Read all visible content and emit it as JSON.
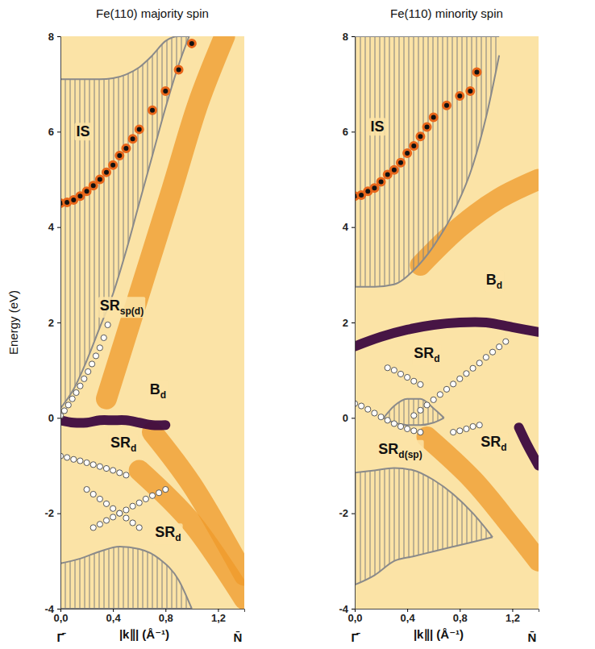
{
  "chart_data": [
    {
      "type": "scatter",
      "title": "Fe(110) majority spin",
      "x_label": "|k∥| (Å⁻¹)",
      "y_label": "Energy  (eV)",
      "x_end_labels": [
        "Γ̄",
        "N̄"
      ],
      "xlim": [
        0,
        1.4
      ],
      "ylim": [
        -4,
        8
      ],
      "xticks": [
        {
          "value": 0,
          "label": "0,0"
        },
        {
          "value": 0.4,
          "label": "0,4"
        },
        {
          "value": 0.8,
          "label": "0,8"
        },
        {
          "value": 1.2,
          "label": "1,2"
        }
      ],
      "yticks": [
        -4,
        -2,
        0,
        2,
        4,
        6,
        8
      ],
      "series": [
        {
          "type": "line",
          "line_style": "broad",
          "color": "#ef9a2a",
          "x": [
            0.35,
            0.6,
            0.85,
            1.05,
            1.25
          ],
          "values": [
            0.4,
            2.6,
            4.8,
            6.6,
            8.0
          ]
        },
        {
          "type": "line",
          "line_style": "broad",
          "color": "#ef9a2a",
          "x": [
            0.7,
            1.0,
            1.4
          ],
          "values": [
            -0.3,
            -1.4,
            -3.3
          ]
        },
        {
          "type": "line",
          "line_style": "broad",
          "color": "#ef9a2a",
          "x": [
            0.6,
            1.0,
            1.4
          ],
          "values": [
            -1.1,
            -2.2,
            -3.8
          ]
        },
        {
          "type": "line",
          "line_style": "band",
          "color": "#3d0a3f",
          "x": [
            0,
            0.1,
            0.2,
            0.3,
            0.4,
            0.5,
            0.6,
            0.7,
            0.8
          ],
          "values": [
            -0.05,
            -0.1,
            -0.1,
            -0.05,
            -0.05,
            -0.05,
            -0.1,
            -0.15,
            -0.15
          ]
        },
        {
          "type": "area",
          "color": "#8a8a8a",
          "x": [
            0,
            0.1,
            0.2,
            0.3,
            0.4,
            0.5,
            0.6,
            0.7,
            0.8,
            0.9,
            0.98
          ],
          "values": [
            7.1,
            7.1,
            7.1,
            7.1,
            7.12,
            7.2,
            7.35,
            7.6,
            7.9,
            8.0,
            8.0
          ],
          "lower": [
            0.2,
            0.6,
            1.2,
            1.9,
            2.6,
            3.5,
            4.5,
            5.5,
            6.5,
            7.4,
            8.0
          ]
        },
        {
          "type": "area",
          "color": "#8a8a8a",
          "x": [
            0,
            0.15,
            0.3,
            0.45,
            0.6,
            0.75,
            0.9,
            1.0
          ],
          "values": [
            -3.05,
            -2.95,
            -2.8,
            -2.7,
            -2.75,
            -2.95,
            -3.4,
            -4.0
          ],
          "lower": [
            -4,
            -4,
            -4,
            -4,
            -4,
            -4,
            -4,
            -4
          ]
        },
        {
          "type": "scatter",
          "marker": "ringed",
          "color": "#111111",
          "x": [
            0,
            0.05,
            0.1,
            0.15,
            0.2,
            0.25,
            0.3,
            0.35,
            0.4,
            0.45,
            0.5,
            0.55,
            0.6,
            0.7,
            0.8,
            0.9,
            1.0
          ],
          "values": [
            4.5,
            4.52,
            4.57,
            4.65,
            4.75,
            4.87,
            5.0,
            5.15,
            5.3,
            5.5,
            5.65,
            5.85,
            6.05,
            6.45,
            6.85,
            7.3,
            7.85
          ]
        },
        {
          "type": "scatter",
          "marker": "circle",
          "color": "#ffffff",
          "x": [
            0,
            0.03,
            0.06,
            0.09,
            0.12,
            0.15,
            0.18,
            0.21,
            0.24,
            0.27,
            0.3,
            0.33,
            0.36
          ],
          "values": [
            0.05,
            0.15,
            0.27,
            0.4,
            0.53,
            0.67,
            0.82,
            0.97,
            1.13,
            1.3,
            1.47,
            1.68,
            1.95
          ]
        },
        {
          "type": "scatter",
          "marker": "circle",
          "color": "#ffffff",
          "x": [
            0,
            0.05,
            0.1,
            0.15,
            0.2,
            0.25,
            0.3,
            0.35,
            0.4,
            0.45,
            0.5
          ],
          "values": [
            -0.8,
            -0.83,
            -0.87,
            -0.9,
            -0.94,
            -0.98,
            -1.02,
            -1.06,
            -1.1,
            -1.15,
            -1.2
          ]
        },
        {
          "type": "scatter",
          "marker": "circle",
          "color": "#ffffff",
          "x": [
            0.2,
            0.25,
            0.3,
            0.35,
            0.4,
            0.45,
            0.5,
            0.55,
            0.6
          ],
          "values": [
            -1.5,
            -1.6,
            -1.7,
            -1.8,
            -1.9,
            -2.0,
            -2.1,
            -2.2,
            -2.3
          ]
        },
        {
          "type": "scatter",
          "marker": "circle",
          "color": "#ffffff",
          "x": [
            0.25,
            0.3,
            0.35,
            0.4,
            0.45,
            0.5,
            0.55,
            0.6,
            0.65,
            0.7,
            0.75,
            0.8
          ],
          "values": [
            -2.3,
            -2.23,
            -2.15,
            -2.08,
            -2.0,
            -1.93,
            -1.85,
            -1.78,
            -1.7,
            -1.63,
            -1.57,
            -1.5
          ]
        }
      ],
      "annotations": [
        {
          "text": "IS",
          "x": 0.12,
          "y": 5.9
        },
        {
          "text": "SR",
          "sub": "sp(d)",
          "x": 0.3,
          "y": 2.25
        },
        {
          "text": "B",
          "sub": "d",
          "x": 0.68,
          "y": 0.5
        },
        {
          "text": "SR",
          "sub": "d",
          "x": 0.38,
          "y": -0.62
        },
        {
          "text": "SR",
          "sub": "d",
          "x": 0.72,
          "y": -2.5
        }
      ]
    },
    {
      "type": "scatter",
      "title": "Fe(110) minority spin",
      "x_label": "|k∥| (Å⁻¹)",
      "x_end_labels": [
        "Γ̄",
        "N̄"
      ],
      "xlim": [
        0,
        1.4
      ],
      "ylim": [
        -4,
        8
      ],
      "xticks": [
        {
          "value": 0,
          "label": "0,0"
        },
        {
          "value": 0.4,
          "label": "0,4"
        },
        {
          "value": 0.8,
          "label": "0,8"
        },
        {
          "value": 1.2,
          "label": "1,2"
        }
      ],
      "yticks": [
        -4,
        -2,
        0,
        2,
        4,
        6,
        8
      ],
      "series": [
        {
          "type": "line",
          "line_style": "broad",
          "color": "#ef9a2a",
          "x": [
            0.55,
            0.9,
            1.2,
            1.4
          ],
          "values": [
            -0.4,
            -1.3,
            -2.3,
            -3.0
          ]
        },
        {
          "type": "line",
          "line_style": "broad",
          "color": "#ef9a2a",
          "x": [
            0.5,
            0.8,
            1.1,
            1.4
          ],
          "values": [
            3.2,
            4.0,
            4.6,
            5.0
          ]
        },
        {
          "type": "line",
          "line_style": "band",
          "color": "#3d0a3f",
          "x": [
            0,
            0.2,
            0.4,
            0.6,
            0.8,
            1.0,
            1.2,
            1.4
          ],
          "values": [
            1.5,
            1.7,
            1.85,
            1.95,
            2.0,
            2.0,
            1.9,
            1.8
          ]
        },
        {
          "type": "line",
          "line_style": "band",
          "color": "#3d0a3f",
          "x": [
            1.25,
            1.32,
            1.4
          ],
          "values": [
            -0.2,
            -0.6,
            -1.0
          ]
        },
        {
          "type": "area",
          "color": "#8a8a8a",
          "x": [
            0,
            0.15,
            0.3,
            0.45,
            0.6,
            0.75,
            0.9,
            1.0,
            1.1
          ],
          "values": [
            8,
            8,
            8,
            8,
            8,
            8,
            8,
            8,
            8
          ],
          "lower": [
            2.75,
            2.75,
            2.8,
            3.1,
            3.6,
            4.3,
            5.3,
            6.3,
            7.6
          ]
        },
        {
          "type": "area",
          "color": "#8a8a8a",
          "x": [
            0,
            0.15,
            0.3,
            0.45,
            0.6,
            0.75,
            0.9,
            1.05
          ],
          "values": [
            -1.15,
            -1.1,
            -1.05,
            -1.1,
            -1.3,
            -1.6,
            -2.0,
            -2.5
          ],
          "lower": [
            -3.5,
            -3.3,
            -3.0,
            -2.9,
            -2.8,
            -2.7,
            -2.6,
            -2.5
          ]
        },
        {
          "type": "area",
          "color": "#8a8a8a",
          "x": [
            0.22,
            0.3,
            0.4,
            0.5,
            0.6,
            0.68
          ],
          "values": [
            0.0,
            0.25,
            0.4,
            0.4,
            0.2,
            0.0
          ],
          "lower": [
            0.0,
            -0.1,
            -0.15,
            -0.15,
            -0.1,
            0.0
          ]
        },
        {
          "type": "scatter",
          "marker": "ringed",
          "color": "#111111",
          "x": [
            0,
            0.05,
            0.1,
            0.15,
            0.2,
            0.25,
            0.3,
            0.35,
            0.4,
            0.45,
            0.5,
            0.55,
            0.6,
            0.7,
            0.8,
            0.88,
            0.93
          ],
          "values": [
            4.65,
            4.67,
            4.75,
            4.82,
            4.95,
            5.1,
            5.2,
            5.35,
            5.55,
            5.7,
            5.9,
            6.1,
            6.3,
            6.55,
            6.75,
            6.85,
            7.25
          ]
        },
        {
          "type": "scatter",
          "marker": "circle",
          "color": "#ffffff",
          "x": [
            0,
            0.05,
            0.1,
            0.15,
            0.2,
            0.25,
            0.3,
            0.35,
            0.4,
            0.45,
            0.5
          ],
          "values": [
            0.3,
            0.25,
            0.18,
            0.1,
            0.02,
            -0.05,
            -0.12,
            -0.18,
            -0.23,
            -0.27,
            -0.3
          ]
        },
        {
          "type": "scatter",
          "marker": "circle",
          "color": "#ffffff",
          "x": [
            0.25,
            0.3,
            0.35,
            0.4,
            0.45,
            0.5
          ],
          "values": [
            1.05,
            1.0,
            0.92,
            0.85,
            0.77,
            0.7
          ]
        },
        {
          "type": "scatter",
          "marker": "circle",
          "color": "#ffffff",
          "x": [
            0.45,
            0.5,
            0.55,
            0.6,
            0.65,
            0.7,
            0.75,
            0.8,
            0.85,
            0.9,
            0.95,
            1.0,
            1.05,
            1.1,
            1.15
          ],
          "values": [
            0.05,
            0.16,
            0.27,
            0.38,
            0.49,
            0.6,
            0.71,
            0.82,
            0.93,
            1.04,
            1.15,
            1.27,
            1.38,
            1.49,
            1.6
          ]
        },
        {
          "type": "scatter",
          "marker": "circle",
          "color": "#ffffff",
          "x": [
            0.75,
            0.8,
            0.85,
            0.9,
            0.95
          ],
          "values": [
            -0.3,
            -0.27,
            -0.23,
            -0.18,
            -0.15
          ]
        }
      ],
      "annotations": [
        {
          "text": "IS",
          "x": 0.12,
          "y": 6.0
        },
        {
          "text": "B",
          "sub": "d",
          "x": 1.0,
          "y": 2.8
        },
        {
          "text": "SR",
          "sub": "d",
          "x": 0.45,
          "y": 1.25
        },
        {
          "text": "SR",
          "sub": "d(sp)",
          "x": 0.18,
          "y": -0.75
        },
        {
          "text": "SR",
          "sub": "d",
          "x": 0.96,
          "y": -0.6
        }
      ]
    }
  ]
}
